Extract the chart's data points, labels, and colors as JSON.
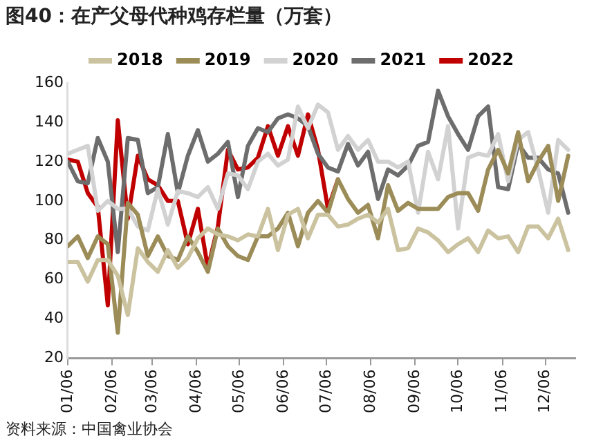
{
  "chart_data": {
    "type": "line",
    "title": "图40：在产父母代种鸡存栏量（万套）",
    "annotations": [
      "资料来源：中国禽业协会"
    ],
    "x": [
      "--01-06",
      "--01-13",
      "--01-20",
      "--01-27",
      "--02-03",
      "--02-10",
      "--02-17",
      "--02-24",
      "--03-03",
      "--03-10",
      "--03-17",
      "--03-24",
      "--03-31",
      "--04-07",
      "--04-14",
      "--04-21",
      "--04-28",
      "--05-05",
      "--05-12",
      "--05-19",
      "--05-26",
      "--06-02",
      "--06-09",
      "--06-16",
      "--06-23",
      "--06-30",
      "--07-07",
      "--07-14",
      "--07-21",
      "--07-28",
      "--08-04",
      "--08-11",
      "--08-18",
      "--08-25",
      "--09-01",
      "--09-08",
      "--09-15",
      "--09-22",
      "--09-29",
      "--10-06",
      "--10-13",
      "--10-20",
      "--10-27",
      "--11-03",
      "--11-10",
      "--11-17",
      "--11-24",
      "--12-01",
      "--12-08",
      "--12-15",
      "--12-22"
    ],
    "series": [
      {
        "name": "2018",
        "color": "#cbc39f",
        "values": [
          69,
          69,
          59,
          70,
          70,
          62,
          42,
          76,
          69,
          64,
          75,
          66,
          71,
          81,
          86,
          83,
          82,
          80,
          83,
          82,
          96,
          75,
          93,
          96,
          81,
          93,
          93,
          87,
          88,
          91,
          93,
          89,
          96,
          75,
          76,
          86,
          84,
          80,
          74,
          78,
          81,
          74,
          85,
          81,
          82,
          74,
          87,
          87,
          81,
          91,
          75
        ]
      },
      {
        "name": "2019",
        "color": "#9b8c58",
        "values": [
          77,
          82,
          71,
          82,
          78,
          33,
          99,
          93,
          72,
          82,
          72,
          70,
          82,
          74,
          64,
          86,
          77,
          72,
          70,
          82,
          82,
          86,
          94,
          77,
          94,
          100,
          94,
          111,
          101,
          94,
          98,
          81,
          108,
          95,
          99,
          96,
          96,
          96,
          102,
          104,
          104,
          95,
          116,
          126,
          114,
          135,
          110,
          120,
          128,
          100,
          123
        ]
      },
      {
        "name": "2020",
        "color": "#d2d2d2",
        "values": [
          124,
          126,
          128,
          95,
          100,
          96,
          96,
          87,
          85,
          106,
          88,
          105,
          104,
          102,
          107,
          96,
          114,
          113,
          106,
          120,
          124,
          118,
          121,
          148,
          137,
          149,
          145,
          126,
          133,
          126,
          131,
          120,
          120,
          117,
          120,
          94,
          125,
          111,
          138,
          86,
          122,
          124,
          123,
          134,
          110,
          131,
          135,
          116,
          94,
          131,
          126
        ]
      },
      {
        "name": "2021",
        "color": "#6d6d6d",
        "values": [
          120,
          110,
          109,
          132,
          120,
          74,
          132,
          131,
          104,
          107,
          134,
          104,
          123,
          136,
          120,
          124,
          130,
          102,
          128,
          137,
          135,
          142,
          144,
          142,
          138,
          124,
          117,
          115,
          129,
          118,
          125,
          101,
          116,
          113,
          118,
          128,
          130,
          156,
          143,
          134,
          126,
          143,
          148,
          107,
          106,
          129,
          122,
          122,
          116,
          114,
          94
        ]
      },
      {
        "name": "2022",
        "color": "#c00000",
        "x": [
          "--01-06",
          "--01-13",
          "--01-20",
          "--01-27",
          "--02-03",
          "--02-10",
          "--02-17",
          "--02-24",
          "--03-03",
          "--03-10",
          "--03-17",
          "--03-24",
          "--03-31",
          "--04-07",
          "--04-14",
          "--04-21",
          "--04-28",
          "--05-05",
          "--05-12",
          "--05-19",
          "--05-26",
          "--06-02",
          "--06-09",
          "--06-16",
          "--06-23",
          "--06-30",
          "--07-07",
          "--07-14"
        ],
        "values": [
          121,
          120,
          104,
          97,
          47,
          141,
          91,
          123,
          111,
          108,
          100,
          100,
          78,
          96,
          66,
          87,
          126,
          116,
          117,
          122,
          138,
          123,
          138,
          123,
          144,
          126,
          96,
          111
        ]
      }
    ],
    "xlim": [
      "--01-06",
      "--12-27"
    ],
    "xticks": [
      {
        "value": "--01-06",
        "label": "01/06"
      },
      {
        "value": "--02-06",
        "label": "02/06"
      },
      {
        "value": "--03-06",
        "label": "03/06"
      },
      {
        "value": "--04-06",
        "label": "04/06"
      },
      {
        "value": "--05-06",
        "label": "05/06"
      },
      {
        "value": "--06-06",
        "label": "06/06"
      },
      {
        "value": "--07-06",
        "label": "07/06"
      },
      {
        "value": "--08-06",
        "label": "08/06"
      },
      {
        "value": "--09-06",
        "label": "09/06"
      },
      {
        "value": "--10-06",
        "label": "10/06"
      },
      {
        "value": "--11-06",
        "label": "11/06"
      },
      {
        "value": "--12-06",
        "label": "12/06"
      }
    ],
    "ylim": [
      20,
      160
    ],
    "yticks": [
      20,
      40,
      60,
      80,
      100,
      120,
      140,
      160
    ],
    "grid": false,
    "legend": "top",
    "marker": "none",
    "line_style": "solid"
  }
}
